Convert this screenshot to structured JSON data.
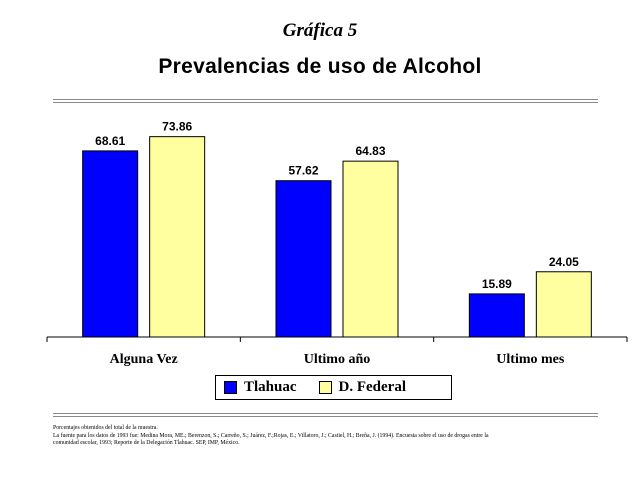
{
  "header": {
    "kicker": "Gráfica 5",
    "title": "Prevalencias de uso de Alcohol"
  },
  "colors": {
    "series_1": "#0000ff",
    "series_2": "#ffffa0",
    "rule": "#8a8a8a"
  },
  "chart_data": {
    "type": "bar",
    "title": "Prevalencias de uso de Alcohol",
    "categories": [
      "Alguna Vez",
      "Ultimo año",
      "Ultimo mes"
    ],
    "series": [
      {
        "name": "Tlahuac",
        "values": [
          68.61,
          57.62,
          15.89
        ]
      },
      {
        "name": "D. Federal",
        "values": [
          73.86,
          64.83,
          24.05
        ]
      }
    ],
    "data_labels": [
      [
        "68.61",
        "57.62",
        "15.89"
      ],
      [
        "73.86",
        "64.83",
        "24.05"
      ]
    ],
    "ylim": [
      0,
      80
    ],
    "grid": false,
    "legend": "bottom-center",
    "xlabel": "",
    "ylabel": ""
  },
  "legend": {
    "items": [
      {
        "label": "Tlahuac"
      },
      {
        "label": "D. Federal"
      }
    ]
  },
  "footnotes": {
    "line1": "Porcentajes obtenidos del total de la muestra.",
    "line2": "La fuente para los datos de 1993 fue: Medina Mora, ME.; Berenzon, S.; Carreño, S.; Juárez, F.;Rojas, E.; Villatoro, J.; Castiel, H.; Breña, J. (1994). Encuesta sobre el uso de drogas entre la",
    "line3": "comunidad escolar, 1993; Reporte de la Delegación Tlahuac. SEP, IMP, México."
  }
}
